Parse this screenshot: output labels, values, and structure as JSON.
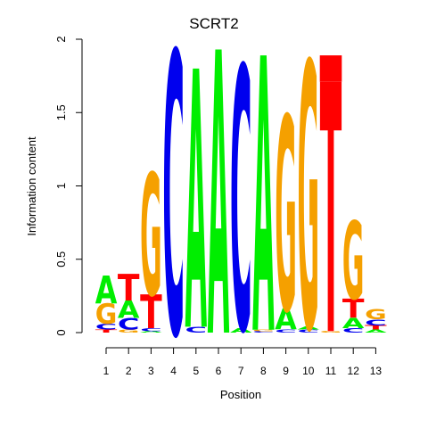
{
  "chart_data": {
    "type": "sequence-logo",
    "title": "SCRT2",
    "xlabel": "Position",
    "ylabel": "Information content",
    "ylim": [
      0,
      2
    ],
    "yticks": [
      "0",
      "0.5",
      "1",
      "1.5",
      "2"
    ],
    "positions": [
      "1",
      "2",
      "3",
      "4",
      "5",
      "6",
      "7",
      "8",
      "9",
      "10",
      "11",
      "12",
      "13"
    ],
    "colors": {
      "A": "#00ee00",
      "C": "#0000ee",
      "G": "#f5a000",
      "T": "#ff0000"
    },
    "columns": [
      [
        {
          "letter": "T",
          "bits": 0.02
        },
        {
          "letter": "C",
          "bits": 0.04
        },
        {
          "letter": "G",
          "bits": 0.14
        },
        {
          "letter": "A",
          "bits": 0.19
        }
      ],
      [
        {
          "letter": "G",
          "bits": 0.02
        },
        {
          "letter": "C",
          "bits": 0.08
        },
        {
          "letter": "A",
          "bits": 0.12
        },
        {
          "letter": "T",
          "bits": 0.18
        }
      ],
      [
        {
          "letter": "A",
          "bits": 0.01
        },
        {
          "letter": "C",
          "bits": 0.02
        },
        {
          "letter": "T",
          "bits": 0.23
        },
        {
          "letter": "G",
          "bits": 0.83
        }
      ],
      [
        {
          "letter": "C",
          "bits": 1.92
        }
      ],
      [
        {
          "letter": "C",
          "bits": 0.04
        },
        {
          "letter": "A",
          "bits": 1.76
        }
      ],
      [
        {
          "letter": "A",
          "bits": 1.93
        }
      ],
      [
        {
          "letter": "A",
          "bits": 0.03
        },
        {
          "letter": "C",
          "bits": 1.79
        }
      ],
      [
        {
          "letter": "C",
          "bits": 0.01
        },
        {
          "letter": "G",
          "bits": 0.01
        },
        {
          "letter": "A",
          "bits": 1.87
        }
      ],
      [
        {
          "letter": "C",
          "bits": 0.02
        },
        {
          "letter": "A",
          "bits": 0.14
        },
        {
          "letter": "G",
          "bits": 1.32
        }
      ],
      [
        {
          "letter": "C",
          "bits": 0.02
        },
        {
          "letter": "A",
          "bits": 0.02
        },
        {
          "letter": "G",
          "bits": 1.81
        }
      ],
      [
        {
          "letter": "G",
          "bits": 0.01
        },
        {
          "letter": "T",
          "bits": 1.7
        },
        {
          "letter": "Q",
          "bits": 0.18,
          "shape": "rect",
          "color": "#ff0000"
        }
      ],
      [
        {
          "letter": "C",
          "bits": 0.03
        },
        {
          "letter": "A",
          "bits": 0.07
        },
        {
          "letter": "T",
          "bits": 0.13
        },
        {
          "letter": "G",
          "bits": 0.53
        }
      ],
      [
        {
          "letter": "A",
          "bits": 0.02
        },
        {
          "letter": "T",
          "bits": 0.03
        },
        {
          "letter": "C",
          "bits": 0.04
        },
        {
          "letter": "G",
          "bits": 0.07
        }
      ]
    ]
  }
}
